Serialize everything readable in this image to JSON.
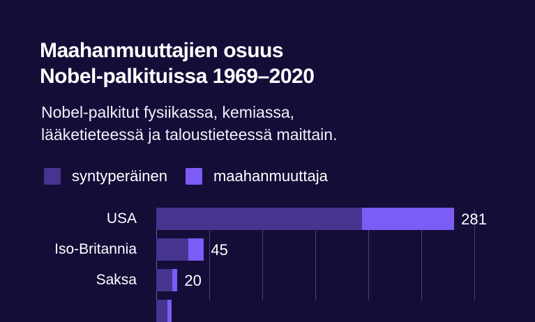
{
  "header": {
    "title_line1": "Maahanmuuttajien osuus",
    "title_line2": "Nobel-palkituissa 1969–2020",
    "subtitle_line1": "Nobel-palkitut fysiikassa, kemiassa,",
    "subtitle_line2": "lääketieteessä ja taloustieteessä maittain."
  },
  "legend": {
    "items": [
      {
        "label": "syntyperäinen",
        "color": "#46348f"
      },
      {
        "label": "maahanmuuttaja",
        "color": "#7b5cf5"
      }
    ]
  },
  "colors": {
    "background": "#140d38",
    "native": "#46348f",
    "immigrant": "#7b5cf5",
    "gridline": "#4a3f8a"
  },
  "chart_data": {
    "type": "bar",
    "orientation": "horizontal",
    "stacked": true,
    "title": "Maahanmuuttajien osuus Nobel-palkituissa 1969–2020",
    "subtitle": "Nobel-palkitut fysiikassa, kemiassa, lääketieteessä ja taloustieteessä maittain.",
    "categories": [
      "USA",
      "Iso-Britannia",
      "Saksa"
    ],
    "series": [
      {
        "name": "syntyperäinen",
        "values": [
          194,
          30,
          15
        ]
      },
      {
        "name": "maahanmuuttaja",
        "values": [
          87,
          15,
          5
        ]
      }
    ],
    "totals": [
      281,
      45,
      20
    ],
    "total_labels": [
      "281",
      "45",
      "20"
    ],
    "xlabel": "",
    "ylabel": "",
    "xlim": [
      0,
      300
    ],
    "gridlines": [
      0,
      50,
      100,
      150,
      200,
      250,
      300
    ],
    "legend_position": "top",
    "note": "Chart is cropped; further rows below are not visible."
  }
}
